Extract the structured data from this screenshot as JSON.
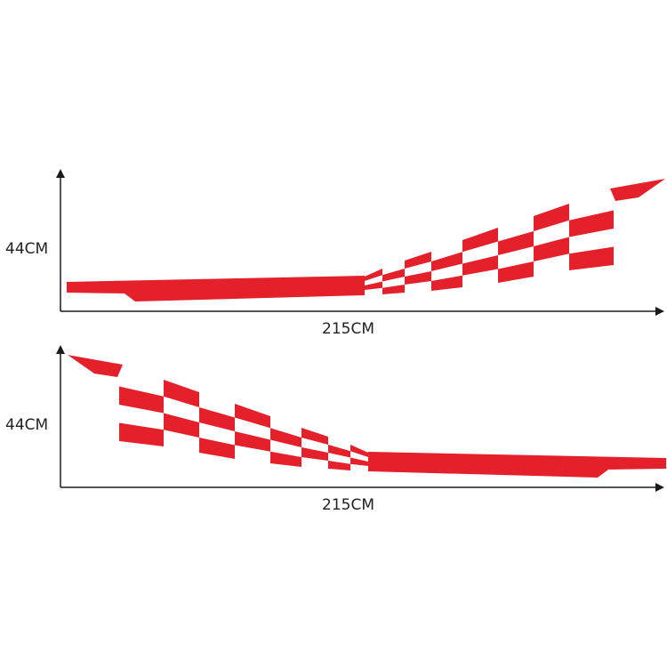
{
  "colors": {
    "decal": "#e4202a",
    "axis": "#1a1a1a"
  },
  "diagrams": [
    {
      "height_label": "44CM",
      "width_label": "215CM",
      "orientation": "rising-right"
    },
    {
      "height_label": "44CM",
      "width_label": "215CM",
      "orientation": "rising-left"
    }
  ]
}
